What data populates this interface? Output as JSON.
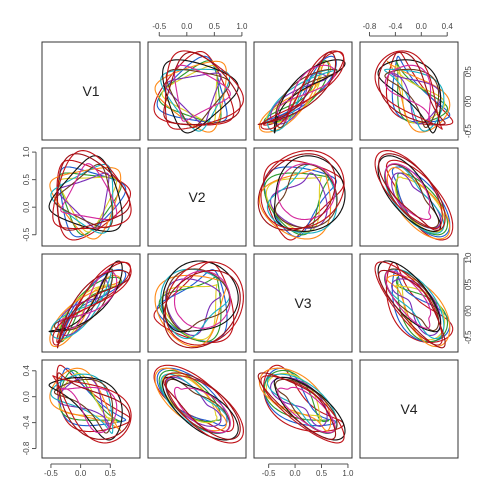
{
  "chart_data": {
    "type": "scatter",
    "layout": "pairs-matrix",
    "variables": [
      "V1",
      "V2",
      "V3",
      "V4"
    ],
    "axes": {
      "V1": {
        "range": [
          -0.6,
          0.95
        ],
        "ticks": [
          -0.5,
          0.0,
          0.5
        ],
        "tick_labels": [
          "-0.5",
          "0.0",
          "0.5"
        ]
      },
      "V2": {
        "range": [
          -0.65,
          1.02
        ],
        "ticks": [
          -0.5,
          0.0,
          0.5,
          1.0
        ],
        "tick_labels": [
          "-0.5",
          "0.0",
          "0.5",
          "1.0"
        ]
      },
      "V3": {
        "range": [
          -0.72,
          1.02
        ],
        "ticks": [
          -0.5,
          0.0,
          0.5,
          1.0
        ],
        "tick_labels": [
          "-0.5",
          "0.0",
          "0.5",
          "1.0"
        ]
      },
      "V4": {
        "range": [
          -0.9,
          0.52
        ],
        "ticks": [
          -0.8,
          -0.4,
          0.0,
          0.4
        ],
        "tick_labels": [
          "-0.8",
          "-0.4",
          "0.0",
          "0.4"
        ]
      }
    },
    "series": [
      {
        "color": "#c0141a",
        "phase": 0.0,
        "amp": 1.0
      },
      {
        "color": "#1f5fd1",
        "phase": 0.35,
        "amp": 0.88
      },
      {
        "color": "#2e9c2e",
        "phase": 0.8,
        "amp": 0.8
      },
      {
        "color": "#e0cf2a",
        "phase": 1.2,
        "amp": 0.72
      },
      {
        "color": "#ff8c1a",
        "phase": 1.6,
        "amp": 0.92
      },
      {
        "color": "#7a2fb8",
        "phase": 2.0,
        "amp": 0.66
      },
      {
        "color": "#1ab0c2",
        "phase": 2.4,
        "amp": 0.84
      },
      {
        "color": "#6b3b1e",
        "phase": 2.9,
        "amp": 0.76
      },
      {
        "color": "#111111",
        "phase": 3.3,
        "amp": 0.95
      },
      {
        "color": "#d4289c",
        "phase": 3.8,
        "amp": 0.7
      },
      {
        "color": "#c0141a",
        "phase": 4.3,
        "amp": 1.04
      },
      {
        "color": "#9e1016",
        "phase": 4.9,
        "amp": 0.98
      }
    ],
    "grid": false,
    "legend": "none"
  }
}
